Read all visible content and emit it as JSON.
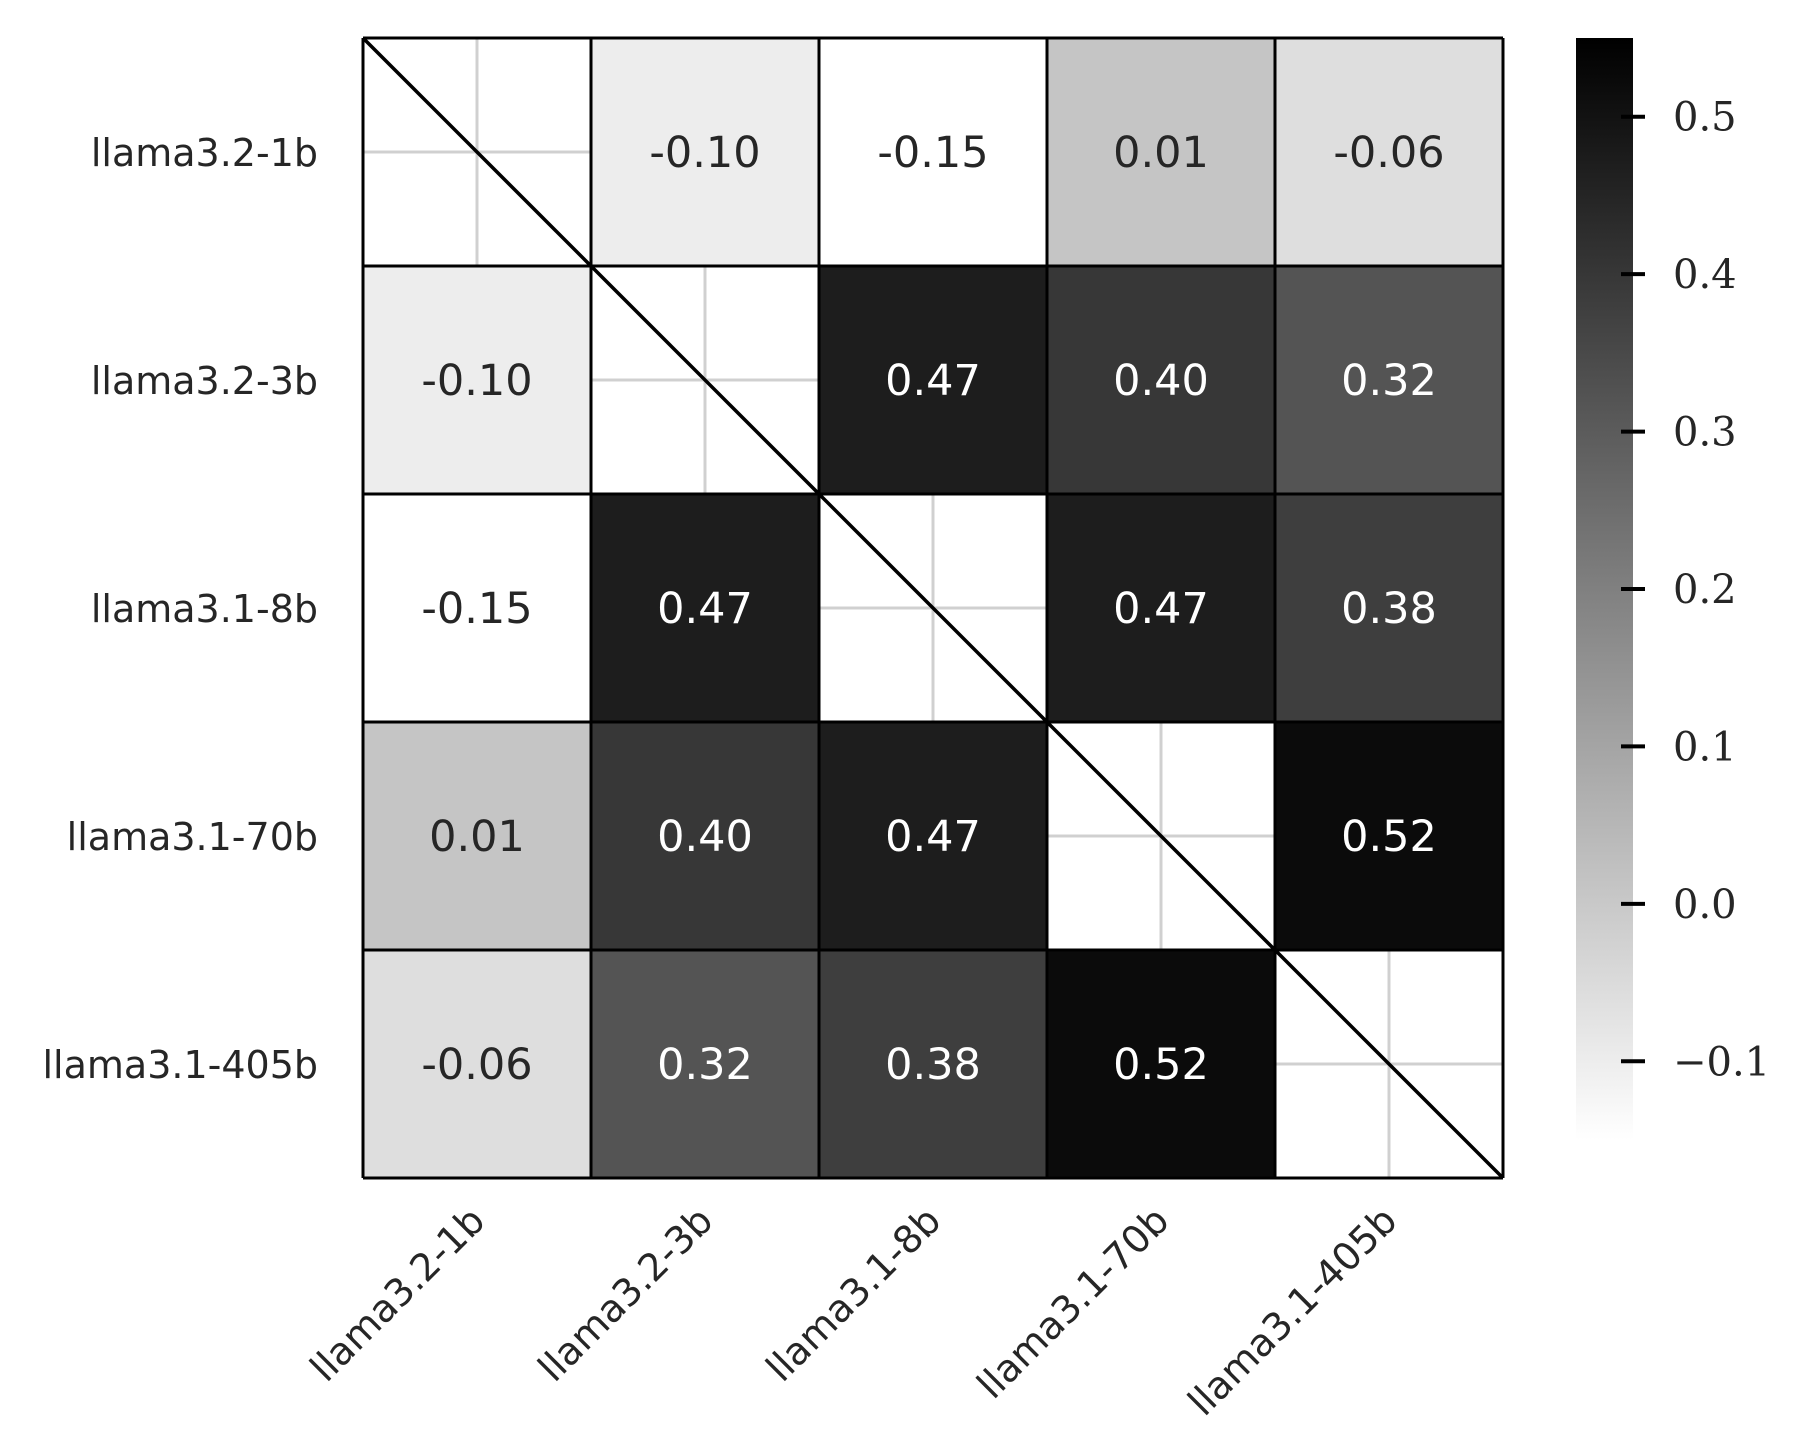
{
  "chart_data": {
    "type": "heatmap",
    "title": "",
    "xlabel": "",
    "ylabel": "",
    "rows": [
      "llama3.2-1b",
      "llama3.2-3b",
      "llama3.1-8b",
      "llama3.1-70b",
      "llama3.1-405b"
    ],
    "columns": [
      "llama3.2-1b",
      "llama3.2-3b",
      "llama3.1-8b",
      "llama3.1-70b",
      "llama3.1-405b"
    ],
    "values": [
      [
        null,
        -0.1,
        -0.15,
        0.01,
        -0.06
      ],
      [
        -0.1,
        null,
        0.47,
        0.4,
        0.32
      ],
      [
        -0.15,
        0.47,
        null,
        0.47,
        0.38
      ],
      [
        0.01,
        0.4,
        0.47,
        null,
        0.52
      ],
      [
        -0.06,
        0.32,
        0.38,
        0.52,
        null
      ]
    ],
    "cell_labels": [
      [
        "",
        "-0.10",
        "-0.15",
        "0.01",
        "-0.06"
      ],
      [
        "-0.10",
        "",
        "0.47",
        "0.40",
        "0.32"
      ],
      [
        "-0.15",
        "0.47",
        "",
        "0.47",
        "0.38"
      ],
      [
        "0.01",
        "0.40",
        "0.47",
        "",
        "0.52"
      ],
      [
        "-0.06",
        "0.32",
        "0.38",
        "0.52",
        ""
      ]
    ],
    "diagonal": "blank with diagonal line",
    "colormap": "Greys",
    "colorbar": {
      "range": [
        -0.15,
        0.55
      ],
      "ticks": [
        -0.1,
        0.0,
        0.1,
        0.2,
        0.3,
        0.4,
        0.5
      ],
      "tick_labels": [
        "−0.1",
        "0.0",
        "0.1",
        "0.2",
        "0.3",
        "0.4",
        "0.5"
      ],
      "position": "right"
    },
    "x_tick_rotation_deg": 45,
    "grid": true
  }
}
